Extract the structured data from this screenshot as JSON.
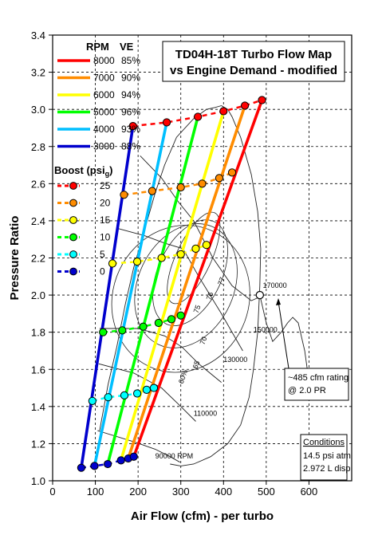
{
  "chart_data": {
    "type": "line",
    "title": [
      "TD04H-18T Turbo Flow Map",
      "vs Engine Demand - modified"
    ],
    "xlabel": "Air Flow (cfm) - per turbo",
    "ylabel": "Pressure Ratio",
    "xlim": [
      0,
      700
    ],
    "ylim": [
      1.0,
      3.4
    ],
    "x_ticks": [
      0,
      100,
      200,
      300,
      400,
      500,
      600
    ],
    "y_ticks": [
      1.0,
      1.2,
      1.4,
      1.6,
      1.8,
      2.0,
      2.2,
      2.4,
      2.6,
      2.8,
      3.0,
      3.2,
      3.4
    ],
    "x_tick_labels": [
      "0",
      "100",
      "200",
      "300",
      "400",
      "500",
      "600"
    ],
    "y_tick_labels": [
      "1.0",
      "1.2",
      "1.4",
      "1.6",
      "1.8",
      "2.0",
      "2.2",
      "2.4",
      "2.6",
      "2.8",
      "3.0",
      "3.2",
      "3.4"
    ],
    "grid": true,
    "rpm_legend_header": {
      "rpm": "RPM",
      "ve": "VE"
    },
    "boost_legend_title": "Boost (psi",
    "boost_legend_subscript": "g",
    "boost_legend_close": ")",
    "series": [
      {
        "name": "8000",
        "ve": "85%",
        "color": "#ff0000",
        "x": [
          190,
          490
        ],
        "y": [
          1.13,
          3.05
        ]
      },
      {
        "name": "7000",
        "ve": "90%",
        "color": "#ff8c00",
        "x": [
          177,
          450
        ],
        "y": [
          1.12,
          3.02
        ]
      },
      {
        "name": "6000",
        "ve": "94%",
        "color": "#ffff00",
        "x": [
          160,
          400
        ],
        "y": [
          1.11,
          2.99
        ]
      },
      {
        "name": "5000",
        "ve": "96%",
        "color": "#00ff00",
        "x": [
          129,
          340
        ],
        "y": [
          1.09,
          2.96
        ]
      },
      {
        "name": "4000",
        "ve": "93%",
        "color": "#00bfff",
        "x": [
          98,
          267
        ],
        "y": [
          1.08,
          2.93
        ]
      },
      {
        "name": "3000",
        "ve": "88%",
        "color": "#0000cd",
        "x": [
          67,
          188
        ],
        "y": [
          1.07,
          2.91
        ]
      }
    ],
    "boost_series": [
      {
        "name": "25",
        "color": "#ff0000",
        "x": [
          188,
          267,
          340,
          400,
          450,
          490
        ],
        "y": [
          2.91,
          2.93,
          2.96,
          2.99,
          3.02,
          3.05
        ]
      },
      {
        "name": "20",
        "color": "#ff8c00",
        "x": [
          167,
          233,
          300,
          350,
          390,
          420
        ],
        "y": [
          2.54,
          2.56,
          2.58,
          2.6,
          2.63,
          2.66
        ]
      },
      {
        "name": "15",
        "color": "#ffff00",
        "x": [
          140,
          198,
          255,
          300,
          335,
          360
        ],
        "y": [
          2.17,
          2.18,
          2.2,
          2.22,
          2.25,
          2.27
        ]
      },
      {
        "name": "10",
        "color": "#00ff00",
        "x": [
          118,
          163,
          212,
          248,
          278,
          300
        ],
        "y": [
          1.8,
          1.81,
          1.83,
          1.85,
          1.87,
          1.89
        ]
      },
      {
        "name": "5",
        "color": "#00ffff",
        "x": [
          93,
          130,
          168,
          198,
          220,
          237
        ],
        "y": [
          1.43,
          1.45,
          1.46,
          1.47,
          1.49,
          1.5
        ]
      },
      {
        "name": "0",
        "color": "#0000cd",
        "x": [
          67,
          98,
          129,
          160,
          177,
          190
        ],
        "y": [
          1.07,
          1.08,
          1.09,
          1.11,
          1.12,
          1.13
        ]
      }
    ],
    "rating_point": {
      "x": 485,
      "y": 2.0
    },
    "speed_lines": [
      {
        "label": "90000 RPM",
        "x": [
          105,
          190,
          240,
          275,
          298
        ],
        "y": [
          1.27,
          1.21,
          1.17,
          1.13,
          1.1
        ]
      },
      {
        "label": "110000",
        "x": [
          108,
          190,
          255,
          300,
          335
        ],
        "y": [
          1.63,
          1.58,
          1.5,
          1.4,
          1.32
        ]
      },
      {
        "label": "130000",
        "x": [
          110,
          200,
          262,
          303,
          342,
          395
        ],
        "y": [
          1.82,
          1.82,
          1.78,
          1.72,
          1.63,
          1.53
        ]
      },
      {
        "label": "150000",
        "x": [
          150,
          215,
          262,
          305,
          342,
          395,
          445
        ],
        "y": [
          2.36,
          2.32,
          2.28,
          2.25,
          2.1,
          1.9,
          1.7
        ]
      },
      {
        "label": "170000",
        "x": [
          205,
          255,
          295,
          330,
          375,
          420,
          465,
          485
        ],
        "y": [
          2.75,
          2.63,
          2.5,
          2.4,
          2.2,
          2.05,
          1.97,
          1.99
        ]
      }
    ],
    "surge_line": {
      "x": [
        110,
        130,
        150,
        170,
        190,
        215,
        240,
        262,
        290,
        330,
        360,
        380,
        395
      ],
      "y": [
        1.27,
        1.52,
        1.72,
        1.95,
        2.15,
        2.35,
        2.55,
        2.7,
        2.85,
        2.95,
        3.0,
        3.01,
        3.02
      ]
    },
    "outer_contour": {
      "x": [
        395,
        410,
        420,
        440,
        465,
        480,
        487,
        485,
        480,
        470,
        460,
        440,
        410,
        370,
        330,
        300,
        275
      ],
      "y": [
        3.02,
        3.0,
        2.96,
        2.85,
        2.65,
        2.45,
        2.25,
        2.05,
        1.8,
        1.6,
        1.45,
        1.3,
        1.2,
        1.13,
        1.09,
        1.08,
        1.09
      ]
    },
    "choke_tail": {
      "x": [
        485,
        500,
        515,
        535,
        550,
        562,
        575,
        590,
        602
      ],
      "y": [
        2.0,
        1.85,
        1.75,
        1.8,
        1.85,
        1.88,
        1.85,
        1.7,
        1.5
      ]
    },
    "efficiency_labels": [
      {
        "text": "77",
        "x": 397,
        "y": 2.05
      },
      {
        "text": "76",
        "x": 370,
        "y": 1.97
      },
      {
        "text": "75",
        "x": 340,
        "y": 1.9
      },
      {
        "text": "70",
        "x": 355,
        "y": 1.73
      },
      {
        "text": "65",
        "x": 338,
        "y": 1.6
      },
      {
        "text": "60%",
        "x": 305,
        "y": 1.52
      }
    ],
    "speed_label_positions": [
      {
        "label": "170000",
        "x": 492,
        "y": 2.04
      },
      {
        "label": "150000",
        "x": 470,
        "y": 1.8
      },
      {
        "label": "130000",
        "x": 400,
        "y": 1.64
      },
      {
        "label": "110000",
        "x": 330,
        "y": 1.35
      },
      {
        "label": "90000 RPM",
        "x": 240,
        "y": 1.12
      }
    ],
    "annotations": {
      "rating": [
        "~485 cfm rating",
        "@ 2.0 PR"
      ],
      "conditions_title": "Conditions",
      "conditions": [
        "14.5 psi atm",
        "2.972 L disp"
      ]
    }
  }
}
